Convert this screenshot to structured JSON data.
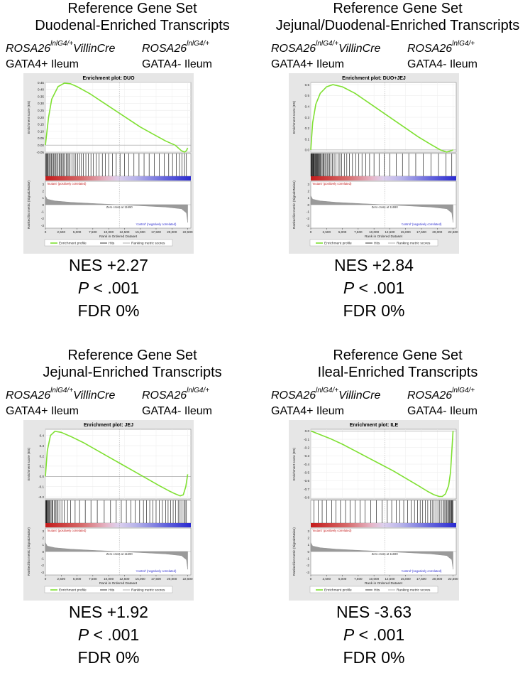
{
  "chart_data": [
    {
      "type": "line",
      "heading": "Reference Gene Set",
      "subheading": "Duodenal-Enriched Transcripts",
      "genotype_left": {
        "base": "ROSA26",
        "sup": "lnlG4/+",
        "suffix": "VillinCre"
      },
      "genotype_right": {
        "base": "ROSA26",
        "sup": "lnlG4/+"
      },
      "group_left": "GATA4+ Ileum",
      "group_right": "GATA4- Ileum",
      "title": "Enrichment plot: DUO",
      "ylabel": "Enrichment score (ES)",
      "ylim": [
        -0.05,
        0.45
      ],
      "yticks": [
        "0.45",
        "0.40",
        "0.35",
        "0.30",
        "0.25",
        "0.20",
        "0.15",
        "0.10",
        "0.05",
        "0.00",
        "-0.05"
      ],
      "x": [
        0,
        500,
        1000,
        2000,
        3000,
        4000,
        5000,
        7000,
        9000,
        11000,
        13000,
        15000,
        17000,
        19000,
        20500,
        21500,
        22000,
        22300,
        22500
      ],
      "y": [
        0.0,
        0.2,
        0.33,
        0.42,
        0.445,
        0.44,
        0.42,
        0.37,
        0.31,
        0.25,
        0.19,
        0.13,
        0.08,
        0.03,
        0.0,
        -0.04,
        -0.05,
        -0.04,
        -0.02
      ],
      "hits": [
        50,
        150,
        250,
        380,
        450,
        600,
        800,
        950,
        1100,
        1300,
        1450,
        1600,
        1800,
        2000,
        2200,
        2350,
        2500,
        2700,
        2900,
        3100,
        3300,
        3500,
        3700,
        3900,
        4200,
        4500,
        4800,
        5100,
        5400,
        5700,
        6000,
        6400,
        6800,
        7200,
        7600,
        8000,
        8500,
        9000,
        9500,
        10000,
        10600,
        11200,
        11800,
        12500,
        13200,
        14000,
        14800,
        15600,
        16400,
        17200,
        18000,
        18800,
        19500,
        20100,
        20700,
        21200,
        21600,
        22000,
        22300
      ],
      "metric_label": "Ranked list metric (Signal2Noise)",
      "metric_yticks": [
        "3",
        "2",
        "1",
        "0",
        "-1",
        "-2",
        "-3"
      ],
      "pos_label": "'mutant' (positively correlated)",
      "neg_label": "'control' (negatively correlated)",
      "zero_cross": "Zero cross at 11690",
      "xlabel": "Rank in Ordered Dataset",
      "xticks": [
        "0",
        "2,500",
        "5,000",
        "7,500",
        "10,000",
        "12,500",
        "15,000",
        "17,500",
        "20,000",
        "22,500"
      ],
      "legend": [
        "Enrichment profile",
        "Hits",
        "Ranking metric scores"
      ],
      "nes": "NES +2.27",
      "p_label": "P",
      "p_value": " < .001",
      "fdr": "FDR 0%"
    },
    {
      "type": "line",
      "heading": "Reference Gene Set",
      "subheading": "Jejunal/Duodenal-Enriched Transcripts",
      "genotype_left": {
        "base": "ROSA26",
        "sup": "lnlG4/+",
        "suffix": "VillinCre"
      },
      "genotype_right": {
        "base": "ROSA26",
        "sup": "lnlG4/+"
      },
      "group_left": "GATA4+ Ileum",
      "group_right": "GATA4- Ileum",
      "title": "Enrichment plot: DUO+JEJ",
      "ylabel": "Enrichment score (ES)",
      "ylim": [
        -0.02,
        0.62
      ],
      "yticks": [
        "0.6",
        "0.5",
        "0.4",
        "0.3",
        "0.2",
        "0.1",
        "0.0"
      ],
      "x": [
        0,
        300,
        800,
        1500,
        2500,
        3500,
        5000,
        7000,
        9000,
        11000,
        13000,
        15000,
        17000,
        19000,
        20500,
        21500,
        22000,
        22500
      ],
      "y": [
        0.0,
        0.25,
        0.42,
        0.52,
        0.58,
        0.6,
        0.58,
        0.52,
        0.44,
        0.36,
        0.28,
        0.2,
        0.12,
        0.05,
        0.0,
        -0.02,
        -0.01,
        0.0
      ],
      "hits": [
        30,
        100,
        180,
        260,
        350,
        430,
        520,
        610,
        700,
        800,
        900,
        1000,
        1100,
        1200,
        1300,
        1400,
        1500,
        1650,
        1800,
        1950,
        2100,
        2250,
        2400,
        2600,
        2800,
        3000,
        3200,
        3400,
        3700,
        4000,
        4300,
        4600,
        4900,
        5300,
        5700,
        6100,
        6600,
        7100,
        7600,
        8100,
        8700,
        9300,
        10000,
        10800,
        11600,
        12500,
        13500,
        14500,
        15500,
        16600,
        17800,
        19000,
        20200,
        21400,
        22300
      ],
      "metric_label": "Ranked list metric (Signal2Noise)",
      "metric_yticks": [
        "3",
        "2",
        "1",
        "0",
        "-1",
        "-2",
        "-3"
      ],
      "pos_label": "'mutant' (positively correlated)",
      "neg_label": "'control' (negatively correlated)",
      "zero_cross": "Zero cross at 11690",
      "xlabel": "Rank in Ordered Dataset",
      "xticks": [
        "0",
        "2,500",
        "5,000",
        "7,500",
        "10,000",
        "12,500",
        "15,000",
        "17,500",
        "20,000",
        "22,500"
      ],
      "legend": [
        "Enrichment profile",
        "Hits",
        "Ranking metric scores"
      ],
      "nes": "NES +2.84",
      "p_label": "P",
      "p_value": " < .001",
      "fdr": "FDR 0%"
    },
    {
      "type": "line",
      "heading": "Reference Gene Set",
      "subheading": "Jejunal-Enriched Transcripts",
      "genotype_left": {
        "base": "ROSA26",
        "sup": "lnlG4/+",
        "suffix": "VillinCre"
      },
      "genotype_right": {
        "base": "ROSA26",
        "sup": "lnlG4/+"
      },
      "group_left": "GATA4+ Ileum",
      "group_right": "GATA4- Ileum",
      "title": "Enrichment plot: JEJ",
      "ylabel": "Enrichment score (ES)",
      "ylim": [
        -0.22,
        0.46
      ],
      "yticks": [
        "0.4",
        "0.3",
        "0.2",
        "0.1",
        "0.0",
        "-0.1",
        "-0.2"
      ],
      "x": [
        0,
        300,
        800,
        1500,
        2500,
        4000,
        6000,
        8000,
        10000,
        12000,
        14000,
        16000,
        18000,
        19500,
        20500,
        21300,
        21800,
        22200,
        22500
      ],
      "y": [
        0.0,
        0.25,
        0.4,
        0.44,
        0.43,
        0.39,
        0.33,
        0.26,
        0.19,
        0.12,
        0.05,
        -0.02,
        -0.09,
        -0.14,
        -0.17,
        -0.19,
        -0.18,
        -0.1,
        0.02
      ],
      "hits": [
        40,
        120,
        200,
        300,
        400,
        500,
        600,
        750,
        900,
        1050,
        1200,
        1400,
        1600,
        1800,
        2000,
        2300,
        2600,
        3000,
        3500,
        4000,
        4700,
        5400,
        6300,
        7200,
        8200,
        9300,
        10300,
        11200,
        12000,
        12800,
        13500,
        14200,
        14900,
        15500,
        16000,
        16500,
        17000,
        17500,
        18000,
        18500,
        19000,
        19400,
        19800,
        20200,
        20600,
        21000,
        21300,
        21600,
        21900,
        22100,
        22300
      ],
      "metric_label": "Ranked list metric (Signal2Noise)",
      "metric_yticks": [
        "3",
        "2",
        "1",
        "0",
        "-1",
        "-2",
        "-3"
      ],
      "pos_label": "'mutant' (positively correlated)",
      "neg_label": "'control' (negatively correlated)",
      "zero_cross": "Zero cross at 11690",
      "xlabel": "Rank in Ordered Dataset",
      "xticks": [
        "0",
        "2,500",
        "5,000",
        "7,500",
        "10,000",
        "12,500",
        "15,000",
        "17,500",
        "20,000",
        "22,500"
      ],
      "legend": [
        "Enrichment profile",
        "Hits",
        "Ranking metric scores"
      ],
      "nes": "NES +1.92",
      "p_label": "P",
      "p_value": " < .001",
      "fdr": "FDR 0%"
    },
    {
      "type": "line",
      "heading": "Reference Gene Set",
      "subheading": "Ileal-Enriched Transcripts",
      "genotype_left": {
        "base": "ROSA26",
        "sup": "lnlG4/+",
        "suffix": "VillinCre"
      },
      "genotype_right": {
        "base": "ROSA26",
        "sup": "lnlG4/+"
      },
      "group_left": "GATA4+ Ileum",
      "group_right": "GATA4- Ileum",
      "title": "Enrichment plot: ILE",
      "ylabel": "Enrichment score (ES)",
      "ylim": [
        -0.82,
        0.02
      ],
      "yticks": [
        "0.0",
        "-0.1",
        "-0.2",
        "-0.3",
        "-0.4",
        "-0.5",
        "-0.6",
        "-0.7",
        "-0.8"
      ],
      "x": [
        0,
        1000,
        3000,
        5000,
        7000,
        9000,
        11000,
        13000,
        15000,
        17000,
        18500,
        19500,
        20300,
        20800,
        21300,
        21800,
        22100,
        22300,
        22500
      ],
      "y": [
        0.0,
        -0.03,
        -0.09,
        -0.16,
        -0.24,
        -0.32,
        -0.4,
        -0.48,
        -0.57,
        -0.66,
        -0.73,
        -0.77,
        -0.79,
        -0.79,
        -0.76,
        -0.66,
        -0.5,
        -0.25,
        0.0
      ],
      "hits": [
        500,
        1200,
        1800,
        2500,
        3300,
        4000,
        4700,
        5500,
        6200,
        7000,
        7800,
        8600,
        9500,
        10400,
        11300,
        12100,
        12800,
        13500,
        14100,
        14700,
        15300,
        15900,
        16400,
        16900,
        17300,
        17700,
        18100,
        18500,
        18900,
        19200,
        19500,
        19800,
        20100,
        20400,
        20650,
        20900,
        21100,
        21300,
        21500,
        21650,
        21800,
        21950,
        22100,
        22200,
        22300,
        22400,
        22500
      ],
      "metric_label": "Ranked list metric (Signal2Noise)",
      "metric_yticks": [
        "3",
        "2",
        "1",
        "0",
        "-1",
        "-2",
        "-3"
      ],
      "pos_label": "'mutant' (positively correlated)",
      "neg_label": "'control' (negatively correlated)",
      "zero_cross": "Zero cross at 11690",
      "xlabel": "Rank in Ordered Dataset",
      "xticks": [
        "0",
        "2,500",
        "5,000",
        "7,500",
        "10,000",
        "12,500",
        "15,000",
        "17,500",
        "20,000",
        "22,500"
      ],
      "legend": [
        "Enrichment profile",
        "Hits",
        "Ranking metric scores"
      ],
      "nes": "NES -3.63",
      "p_label": "P",
      "p_value": " < .001",
      "fdr": "FDR 0%"
    }
  ]
}
